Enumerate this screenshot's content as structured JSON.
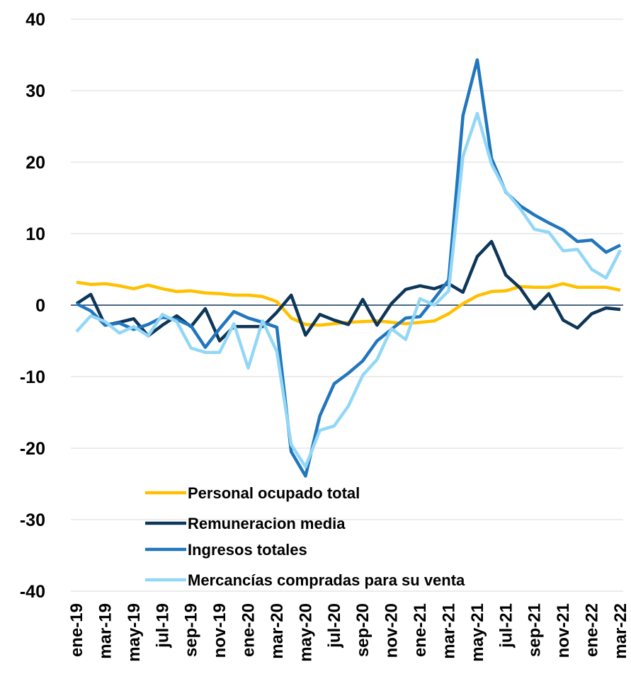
{
  "chart_data": {
    "type": "line",
    "categories": [
      "ene-19",
      null,
      "mar-19",
      null,
      "may-19",
      null,
      "jul-19",
      null,
      "sep-19",
      null,
      "nov-19",
      null,
      "ene-20",
      null,
      "mar-20",
      null,
      "may-20",
      null,
      "jul-20",
      null,
      "sep-20",
      null,
      "nov-20",
      null,
      "ene-21",
      null,
      "mar-21",
      null,
      "may-21",
      null,
      "jul-21",
      null,
      "sep-21",
      null,
      "nov-21",
      null,
      "ene-22",
      null,
      "mar-22"
    ],
    "series": [
      {
        "name": "Personal ocupado total",
        "color": "#ffc000",
        "values": [
          3.2,
          2.9,
          3.0,
          2.7,
          2.3,
          2.8,
          2.3,
          1.9,
          2.0,
          1.7,
          1.6,
          1.4,
          1.4,
          1.2,
          0.5,
          -1.8,
          -2.7,
          -2.8,
          -2.6,
          -2.4,
          -2.3,
          -2.2,
          -2.4,
          -2.6,
          -2.4,
          -2.2,
          -1.2,
          0.2,
          1.3,
          1.9,
          2.0,
          2.6,
          2.5,
          2.5,
          3.0,
          2.5,
          2.5,
          2.5,
          2.1
        ]
      },
      {
        "name": "Remuneracion media",
        "color": "#0e3658",
        "values": [
          0.2,
          1.5,
          -2.8,
          -2.4,
          -1.9,
          -4.3,
          -2.8,
          -1.5,
          -3.0,
          -0.5,
          -5.0,
          -3.0,
          -3.0,
          -3.0,
          -1.0,
          1.4,
          -4.2,
          -1.3,
          -2.1,
          -2.7,
          0.8,
          -2.8,
          0.2,
          2.2,
          2.7,
          2.3,
          3.0,
          1.8,
          6.8,
          8.9,
          4.2,
          2.4,
          -0.5,
          1.6,
          -2.1,
          -3.2,
          -1.2,
          -0.4,
          -0.6
        ]
      },
      {
        "name": "Ingresos totales",
        "color": "#2176bd",
        "values": [
          0.2,
          -0.8,
          -2.8,
          -2.5,
          -3.4,
          -2.7,
          -1.7,
          -2.0,
          -2.9,
          -5.9,
          -3.3,
          -0.9,
          -1.8,
          -2.4,
          -3.1,
          -20.5,
          -23.9,
          -15.5,
          -11.0,
          -9.5,
          -7.8,
          -5.0,
          -3.4,
          -1.8,
          -1.6,
          0.9,
          3.5,
          26.5,
          34.3,
          20.5,
          15.8,
          13.9,
          12.6,
          11.5,
          10.5,
          8.9,
          9.1,
          7.4,
          8.4
        ]
      },
      {
        "name": "Mercancías compradas para su venta",
        "color": "#93d7f7",
        "values": [
          -3.7,
          -1.5,
          -2.3,
          -3.9,
          -3.0,
          -4.3,
          -1.3,
          -2.3,
          -6.0,
          -6.6,
          -6.6,
          -2.6,
          -8.8,
          -2.2,
          -6.5,
          -19.5,
          -22.6,
          -17.5,
          -16.9,
          -14.1,
          -9.8,
          -7.6,
          -3.3,
          -4.8,
          0.9,
          0.0,
          2.0,
          20.8,
          26.8,
          19.7,
          15.9,
          13.5,
          10.6,
          10.2,
          7.6,
          7.8,
          5.0,
          3.8,
          7.7
        ]
      }
    ],
    "ylim": [
      -40,
      40
    ],
    "yticks": [
      -40,
      -30,
      -20,
      -10,
      0,
      10,
      20,
      30,
      40
    ],
    "grid": true
  }
}
